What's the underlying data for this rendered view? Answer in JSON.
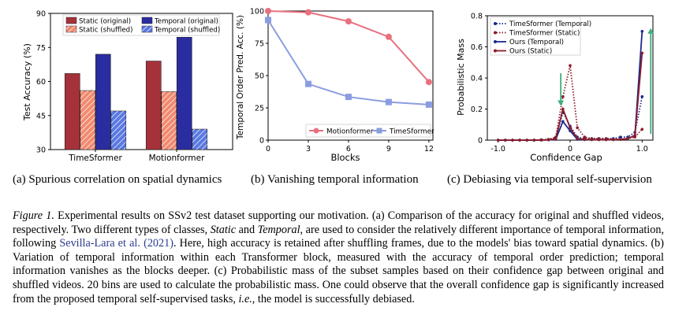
{
  "chart_data": [
    {
      "type": "bar",
      "ylabel": "Test Accuracy (%)",
      "ylim": [
        30,
        90
      ],
      "yticks": [
        30,
        45,
        60,
        75,
        90
      ],
      "categories": [
        "TimeSformer",
        "Motionformer"
      ],
      "legend_position": "top",
      "series": [
        {
          "name": "Static (original)",
          "values": [
            63.5,
            69.0
          ],
          "color": "#a5313a",
          "hatch": false
        },
        {
          "name": "Static (shuffled)",
          "values": [
            56.0,
            55.5
          ],
          "color": "#f08a70",
          "hatch": true
        },
        {
          "name": "Temporal (original)",
          "values": [
            72.0,
            79.5
          ],
          "color": "#2a2da0",
          "hatch": false
        },
        {
          "name": "Temporal (shuffled)",
          "values": [
            47.0,
            39.0
          ],
          "color": "#5a78e0",
          "hatch": true
        }
      ],
      "caption": "(a)  Spurious correlation on spatial dynamics"
    },
    {
      "type": "line",
      "ylabel": "Temporal Order Pred. Acc. (%)",
      "xlabel": "Blocks",
      "xlim": [
        0,
        12.3
      ],
      "ylim": [
        0,
        100
      ],
      "xticks": [
        0,
        3,
        6,
        9,
        12
      ],
      "yticks": [
        0,
        25,
        50,
        75,
        100
      ],
      "legend_position": "bottom-right",
      "series": [
        {
          "name": "Motionformer",
          "x": [
            0,
            3,
            6,
            9,
            12
          ],
          "y": [
            100,
            99,
            92,
            80,
            45
          ],
          "color": "#e8707f",
          "marker": "circle"
        },
        {
          "name": "TimeSformer",
          "x": [
            0,
            3,
            6,
            9,
            12
          ],
          "y": [
            93,
            43.5,
            33.5,
            29.5,
            27.5
          ],
          "color": "#8b9de0",
          "marker": "square"
        }
      ],
      "caption": "(b)  Vanishing temporal information"
    },
    {
      "type": "line",
      "ylabel": "Probabilistic Mass",
      "xlabel": "Confidence Gap",
      "xlim": [
        -1.15,
        1.15
      ],
      "ylim": [
        0,
        0.8
      ],
      "xticks": [
        -1.0,
        0,
        1.0
      ],
      "xtick_labels": [
        "-1.0",
        "0",
        "1.0"
      ],
      "yticks": [
        0,
        0.2,
        0.4,
        0.6,
        0.8
      ],
      "ytick_labels": [
        "0",
        "0.2",
        "0.4",
        "0.6",
        "0.8"
      ],
      "legend_position": "top-left",
      "x": [
        -1.0,
        -0.9,
        -0.8,
        -0.7,
        -0.6,
        -0.5,
        -0.4,
        -0.3,
        -0.2,
        -0.1,
        0.0,
        0.1,
        0.2,
        0.3,
        0.4,
        0.5,
        0.6,
        0.7,
        0.8,
        0.9,
        1.0
      ],
      "series": [
        {
          "name": "TimeSformer (Temporal)",
          "color": "#1c2a8c",
          "style": "dotted",
          "marker": "dot",
          "y": [
            0,
            0,
            0,
            0,
            0,
            0,
            0.002,
            0.005,
            0.015,
            0.18,
            0.09,
            0.02,
            0.01,
            0.01,
            0.01,
            0.01,
            0.01,
            0.02,
            0.02,
            0.05,
            0.28
          ]
        },
        {
          "name": "TimeSformer (Static)",
          "color": "#8c1c2a",
          "style": "dotted",
          "marker": "dot",
          "y": [
            0,
            0,
            0,
            0,
            0,
            0,
            0.002,
            0.005,
            0.02,
            0.28,
            0.48,
            0.08,
            0.02,
            0.01,
            0.01,
            0.01,
            0.005,
            0.005,
            0.01,
            0.02,
            0.07
          ]
        },
        {
          "name": "Ours (Temporal)",
          "color": "#1c2a8c",
          "style": "solid",
          "marker": "dot",
          "y": [
            0,
            0,
            0,
            0,
            0,
            0,
            0,
            0.002,
            0.005,
            0.12,
            0.06,
            0.005,
            0.003,
            0.003,
            0.003,
            0.003,
            0.003,
            0.005,
            0.01,
            0.03,
            0.7
          ]
        },
        {
          "name": "Ours (Static)",
          "color": "#8c1c2a",
          "style": "solid",
          "marker": "dot",
          "y": [
            0,
            0,
            0,
            0,
            0,
            0,
            0,
            0.002,
            0.008,
            0.2,
            0.08,
            0.01,
            0.005,
            0.003,
            0.003,
            0.003,
            0.003,
            0.005,
            0.01,
            0.03,
            0.56
          ]
        }
      ],
      "arrows": [
        {
          "x": -0.13,
          "from": 0.43,
          "to": 0.22,
          "color": "#3cb07a"
        },
        {
          "x": 1.12,
          "from": 0.04,
          "to": 0.72,
          "color": "#3cb07a"
        }
      ],
      "caption": "(c)  Debiasing via temporal self-supervision"
    }
  ],
  "figure_caption": {
    "label": "Figure 1.",
    "t1": " Experimental results on SSv2 test dataset supporting our motivation. (a) Comparison of the accuracy for original and shuffled videos, respectively. Two different types of classes, ",
    "static": "Static",
    "t2": " and ",
    "temporal": "Temporal",
    "t3": ", are used to consider the relatively different importance of temporal information, following ",
    "citation": "Sevilla-Lara et al. (2021)",
    "t4": ". Here, high accuracy is retained after shuffling frames, due to the models' bias toward spatial dynamics. (b) Variation of temporal information within each Transformer block, measured with the accuracy of temporal order prediction; temporal information vanishes as the blocks deeper. (c) Probabilistic mass of the subset samples based on their confidence gap between original and shuffled videos. 20 bins are used to calculate the probabilistic mass. One could observe that the overall confidence gap is significantly increased from the proposed temporal self-supervised tasks, ",
    "ie": "i.e.",
    "t5": ", the model is successfully debiased."
  }
}
